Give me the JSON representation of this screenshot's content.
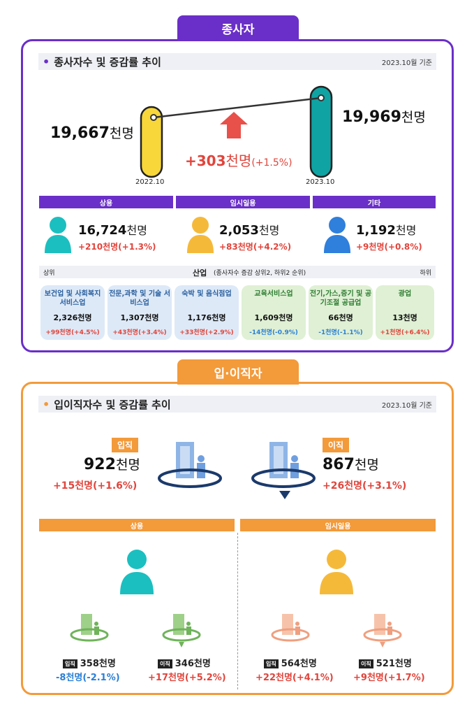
{
  "sec1": {
    "tab": "종사자",
    "title": "종사자수 및 증감률 추이",
    "date": "2023.10월 기준",
    "left_val": "19,667",
    "left_unit": "천명",
    "left_year": "2022.10",
    "right_val": "19,969",
    "right_unit": "천명",
    "right_year": "2023.10",
    "change_plus": "+",
    "change_num": "303",
    "change_unit": "천명",
    "change_pct": "(+1.5%)",
    "cats": [
      {
        "label": "상용",
        "value": "16,724",
        "unit": "천명",
        "change": "+210천명(+1.3%)",
        "color": "#1bbfc0"
      },
      {
        "label": "임시일용",
        "value": "2,053",
        "unit": "천명",
        "change": "+83천명(+4.2%)",
        "color": "#f5b93a"
      },
      {
        "label": "기타",
        "value": "1,192",
        "unit": "천명",
        "change": "+9천명(+0.8%)",
        "color": "#2f7fdc"
      }
    ],
    "industry_title": "산업",
    "industry_note": "(종사자수 증감 상위2, 하위2 순위)",
    "left_rank": "상위",
    "right_rank": "하위",
    "industries": [
      {
        "name": "보건업 및 사회복지 서비스업",
        "value": "2,326천명",
        "change": "+99천명(+4.5%)"
      },
      {
        "name": "전문,과학 및 기술 서비스업",
        "value": "1,307천명",
        "change": "+43천명(+3.4%)"
      },
      {
        "name": "숙박 및 음식점업",
        "value": "1,176천명",
        "change": "+33천명(+2.9%)"
      },
      {
        "name": "교육서비스업",
        "value": "1,609천명",
        "change": "-14천명(-0.9%)"
      },
      {
        "name": "전기,가스,증기 및 공기조절 공급업",
        "value": "66천명",
        "change": "-1천명(-1.1%)"
      },
      {
        "name": "광업",
        "value": "13천명",
        "change": "+1천명(+6.4%)"
      }
    ]
  },
  "sec2": {
    "tab": "입·이직자",
    "title": "입이직자수 및 증감률 추이",
    "date": "2023.10월 기준",
    "in_tag": "입직",
    "in_val": "922",
    "in_unit": "천명",
    "in_change": "+15천명(+1.6%)",
    "out_tag": "이직",
    "out_val": "867",
    "out_unit": "천명",
    "out_change": "+26천명(+3.1%)",
    "left_hdr": "상용",
    "right_hdr": "임시일용",
    "sub": [
      {
        "tag": "입직",
        "val": "358천명",
        "change": "-8천명(-2.1%)"
      },
      {
        "tag": "이직",
        "val": "346천명",
        "change": "+17천명(+5.2%)"
      },
      {
        "tag": "입직",
        "val": "564천명",
        "change": "+22천명(+4.1%)"
      },
      {
        "tag": "이직",
        "val": "521천명",
        "change": "+9천명(+1.7%)"
      }
    ]
  }
}
